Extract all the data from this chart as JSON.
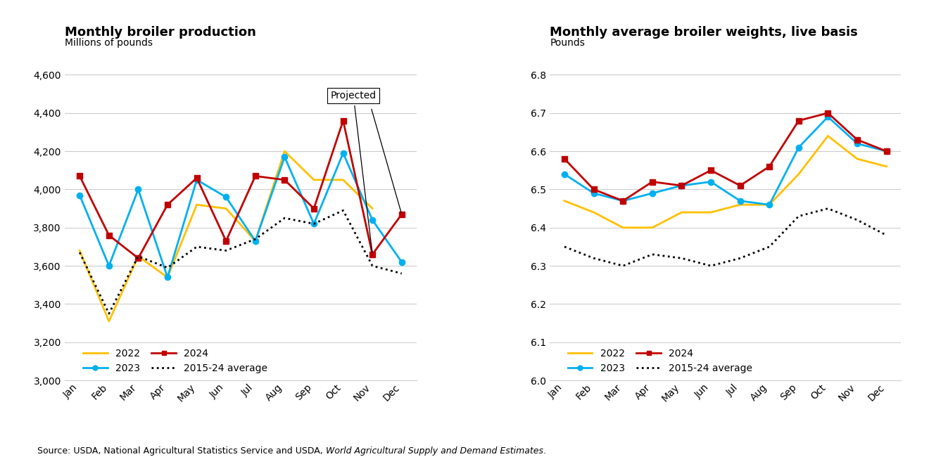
{
  "months": [
    "Jan",
    "Feb",
    "Mar",
    "Apr",
    "May",
    "Jun",
    "Jul",
    "Aug",
    "Sep",
    "Oct",
    "Nov",
    "Dec"
  ],
  "production": {
    "2022": [
      3680,
      3310,
      3650,
      3540,
      3920,
      3900,
      3730,
      4200,
      4050,
      4050,
      3900,
      null
    ],
    "2023": [
      3970,
      3600,
      4000,
      3540,
      4050,
      3960,
      3730,
      4170,
      3820,
      4190,
      3840,
      3620
    ],
    "2024": [
      4070,
      3760,
      3640,
      3920,
      4060,
      3730,
      4070,
      4050,
      3900,
      4360,
      3660,
      3870
    ],
    "avg": [
      3670,
      3350,
      3650,
      3590,
      3700,
      3680,
      3740,
      3850,
      3820,
      3890,
      3600,
      3560
    ]
  },
  "weights": {
    "2022": [
      6.47,
      6.44,
      6.4,
      6.4,
      6.44,
      6.44,
      6.46,
      6.46,
      6.54,
      6.64,
      6.58,
      6.56
    ],
    "2023": [
      6.54,
      6.49,
      6.47,
      6.49,
      6.51,
      6.52,
      6.47,
      6.46,
      6.61,
      6.69,
      6.62,
      6.6
    ],
    "2024": [
      6.58,
      6.5,
      6.47,
      6.52,
      6.51,
      6.55,
      6.51,
      6.56,
      6.68,
      6.7,
      6.63,
      6.6
    ],
    "avg": [
      6.35,
      6.32,
      6.3,
      6.33,
      6.32,
      6.3,
      6.32,
      6.35,
      6.43,
      6.45,
      6.42,
      6.38
    ]
  },
  "colors": {
    "2022": "#FFC000",
    "2023": "#00B0F0",
    "2024": "#C00000",
    "avg": "#000000"
  },
  "title_left": "Monthly broiler production",
  "subtitle_left": "Millions of pounds",
  "title_right": "Monthly average broiler weights, live basis",
  "subtitle_right": "Pounds",
  "ylim_left": [
    3000,
    4700
  ],
  "ylim_right": [
    6.0,
    6.85
  ],
  "yticks_left": [
    3000,
    3200,
    3400,
    3600,
    3800,
    4000,
    4200,
    4400,
    4600
  ],
  "yticks_right": [
    6.0,
    6.1,
    6.2,
    6.3,
    6.4,
    6.5,
    6.6,
    6.7,
    6.8
  ],
  "source_normal": "Source: USDA, National Agricultural Statistics Service and USDA, ",
  "source_italic": "World Agricultural Supply and Demand Estimates",
  "source_period": ".",
  "bg_color": "#ffffff",
  "grid_color": "#cccccc"
}
